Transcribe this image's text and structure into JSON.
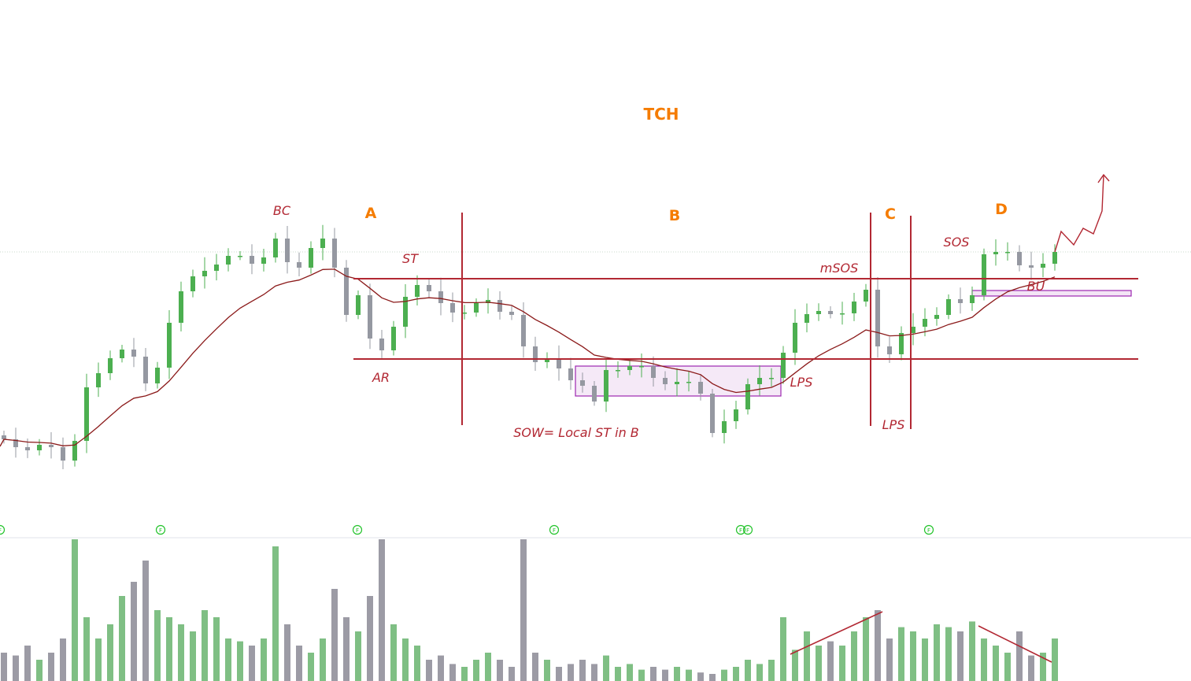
{
  "chart_data": {
    "type": "candlestick",
    "title": "TCH",
    "colors": {
      "up": "#4caf50",
      "down": "#9598a1",
      "vol_up": "#7fbf84",
      "vol_down": "#9c9ba5",
      "ma": "#8b1a1a",
      "annotation": "#b22833",
      "phase": "#f57c00",
      "zone": "#9c27b0",
      "event_marker": "#22c32a"
    },
    "grid": false,
    "closes": [
      9.2,
      8.2,
      7.8,
      8.5,
      8.2,
      6.5,
      9.0,
      15.8,
      17.6,
      19.5,
      20.6,
      19.7,
      16.3,
      18.3,
      24.0,
      28.0,
      29.9,
      30.6,
      31.4,
      32.5,
      32.5,
      31.5,
      32.3,
      34.7,
      31.7,
      31.0,
      33.5,
      34.7,
      31.0,
      25.0,
      27.5,
      22.0,
      20.5,
      23.5,
      27.3,
      28.8,
      28.0,
      26.5,
      25.3,
      25.3,
      26.5,
      26.9,
      25.4,
      25.0,
      21.0,
      19.0,
      19.4,
      18.2,
      16.7,
      16.0,
      14.0,
      18.0,
      18.0,
      18.5,
      18.5,
      17.0,
      16.2,
      16.5,
      16.5,
      15.0,
      10.0,
      11.5,
      13.0,
      16.2,
      17.0,
      17.0,
      20.2,
      24.0,
      25.1,
      25.5,
      25.1,
      25.2,
      26.7,
      28.2,
      21.0,
      20.0,
      22.7,
      23.5,
      24.5,
      25.0,
      27.0,
      26.5,
      27.5,
      32.7,
      33.0,
      33.0,
      31.3,
      31.0,
      31.5,
      33.0
    ],
    "volume": [
      20,
      18,
      25,
      15,
      20,
      30,
      100,
      45,
      30,
      40,
      60,
      70,
      85,
      50,
      45,
      40,
      35,
      50,
      45,
      30,
      28,
      25,
      30,
      95,
      40,
      25,
      20,
      30,
      65,
      45,
      35,
      60,
      100,
      40,
      30,
      25,
      15,
      18,
      12,
      10,
      15,
      20,
      15,
      10,
      100,
      20,
      15,
      10,
      12,
      15,
      12,
      18,
      10,
      12,
      8,
      10,
      8,
      10,
      8,
      6,
      5,
      8,
      10,
      15,
      12,
      15,
      45,
      22,
      35,
      25,
      28,
      25,
      35,
      45,
      50,
      30,
      38,
      35,
      30,
      40,
      38,
      35,
      42,
      30,
      25,
      20,
      35,
      18,
      20,
      30
    ],
    "annotations": {
      "phases": [
        "A",
        "B",
        "C",
        "D"
      ],
      "events": [
        "BC",
        "ST",
        "AR",
        "SOW= Local ST in B",
        "LPS",
        "mSOS",
        "LPS",
        "SOS",
        "BU"
      ],
      "event_marker_label": "F",
      "range_top": 29.6,
      "range_bottom": 19.4
    }
  }
}
